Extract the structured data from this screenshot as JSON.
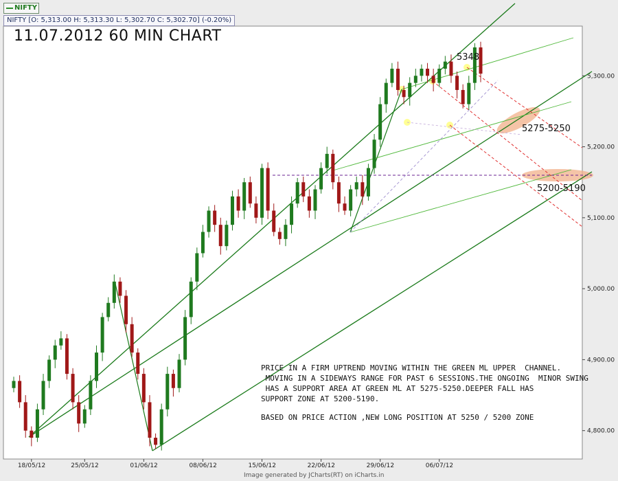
{
  "legend": {
    "label": "NIFTY",
    "color": "#2a8f2a"
  },
  "ohlc_text": "NIFTY [O: 5,313.00  H: 5,313.30  L: 5,302.70  C: 5,302.70] (-0.20%)",
  "title": "11.07.2012 60 MIN CHART",
  "note_lines": [
    "PRICE IN A FIRM UPTREND MOVING WITHIN THE GREEN ML UPPER  CHANNEL.",
    " MOVING IN A SIDEWAYS RANGE FOR PAST 6 SESSIONS.THE ONGOING  MINOR SWING",
    " HAS A SUPPORT AREA AT GREEN ML AT 5275-5250.DEEPER FALL HAS",
    "SUPPORT ZONE AT 5200-5190."
  ],
  "note_line2": "BASED ON PRICE ACTION ,NEW LONG POSITION AT 5250 / 5200 ZONE",
  "footer": "Image generated by JCharts(RT) on iCharts.in",
  "colors": {
    "bull": "#1f7a1f",
    "bear": "#a01818",
    "channel": "#1a7a1a",
    "fork": "#4fb83a",
    "red": "#e03030",
    "purple": "#6a2090",
    "zone": "#f2b08a"
  },
  "chart_data": {
    "type": "candlestick",
    "title": "11.07.2012 60 MIN CHART",
    "series_name": "NIFTY",
    "ylim": [
      4760,
      5370
    ],
    "y_ticks": [
      "4,800.00",
      "4,900.00",
      "5,000.00",
      "5,100.00",
      "5,200.00",
      "5,300.00"
    ],
    "y_tick_values": [
      4800,
      4900,
      5000,
      5100,
      5200,
      5300
    ],
    "x_ticks": [
      "18/05/12",
      "25/05/12",
      "01/06/12",
      "08/06/12",
      "15/06/12",
      "22/06/12",
      "29/06/12",
      "06/07/12"
    ],
    "x_tick_index": [
      3,
      12,
      22,
      32,
      42,
      52,
      62,
      72
    ],
    "num_bars": 80,
    "closes": [
      4870,
      4840,
      4800,
      4790,
      4830,
      4870,
      4900,
      4920,
      4930,
      4880,
      4840,
      4810,
      4830,
      4870,
      4910,
      4960,
      4980,
      5010,
      4990,
      4950,
      4910,
      4880,
      4840,
      4790,
      4780,
      4830,
      4880,
      4860,
      4900,
      4960,
      5010,
      5050,
      5080,
      5110,
      5090,
      5060,
      5090,
      5130,
      5110,
      5150,
      5120,
      5100,
      5170,
      5110,
      5080,
      5070,
      5090,
      5120,
      5150,
      5130,
      5110,
      5140,
      5170,
      5190,
      5150,
      5120,
      5110,
      5140,
      5150,
      5130,
      5170,
      5210,
      5260,
      5290,
      5310,
      5280,
      5270,
      5290,
      5300,
      5310,
      5300,
      5290,
      5310,
      5320,
      5300,
      5280,
      5260,
      5290,
      5340,
      5303
    ],
    "points": [
      {
        "label": "5348",
        "value": 5348
      }
    ],
    "annotations": [
      "5275-5250",
      "5200-5190"
    ],
    "line_levels": [
      {
        "name": "5185 horizontal",
        "value": 5185
      }
    ]
  }
}
